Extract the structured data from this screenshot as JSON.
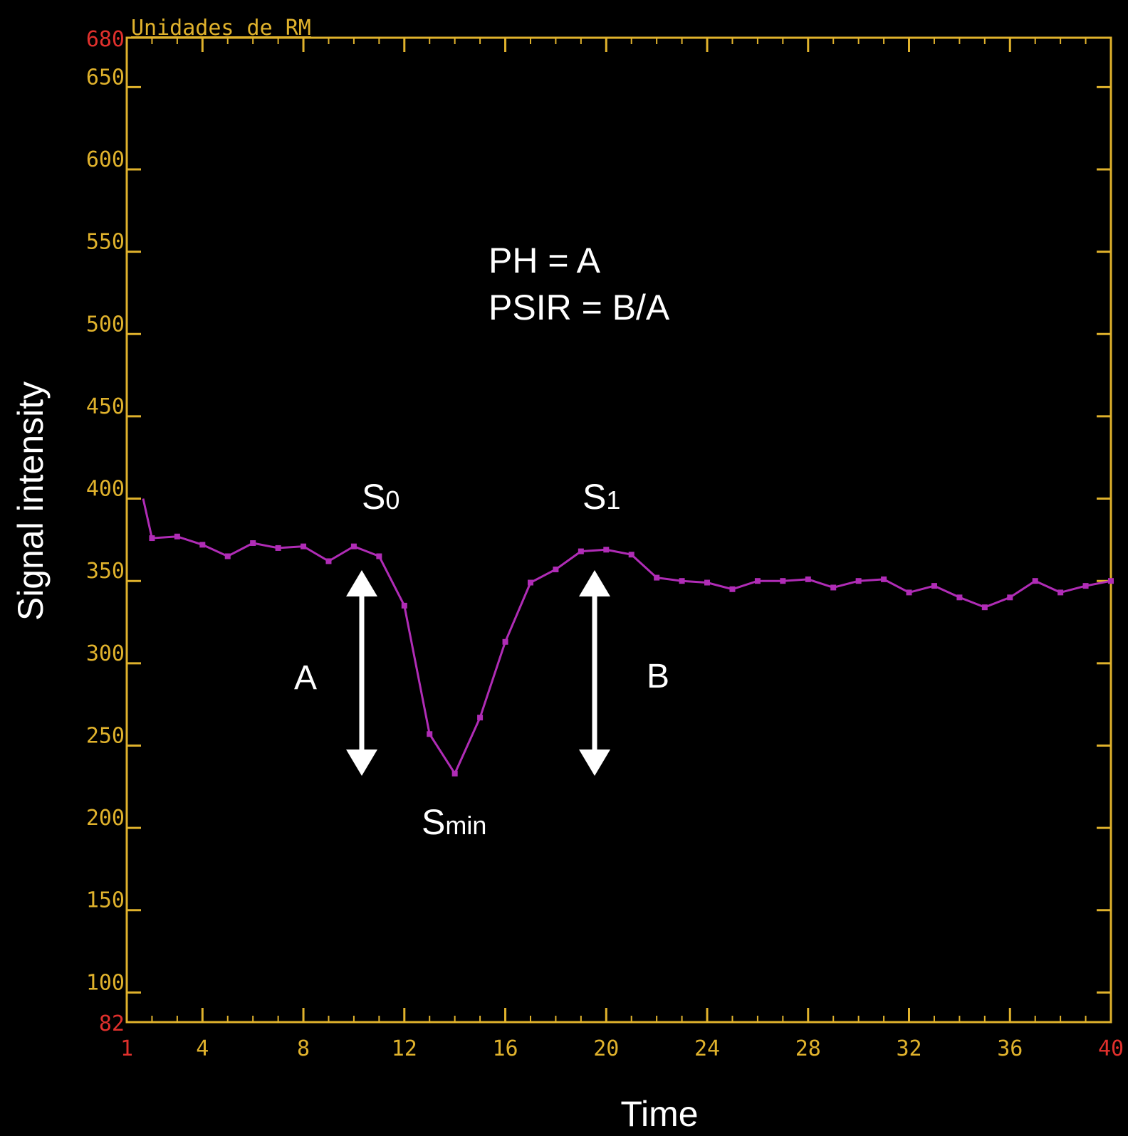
{
  "colors": {
    "background": "#000000",
    "axis": "#e0b22c",
    "limit_tick": "#e0302c",
    "series": "#b02cb6",
    "annotation": "#ffffff"
  },
  "chart_data": {
    "type": "line",
    "units_label": "Unidades de RM",
    "xlabel": "Time",
    "ylabel": "Signal intensity",
    "xlim": [
      1,
      40
    ],
    "ylim": [
      82,
      680
    ],
    "x_ticks": [
      4,
      8,
      12,
      16,
      20,
      24,
      28,
      32,
      36
    ],
    "x_limit_ticks": [
      1,
      40
    ],
    "y_ticks": [
      100,
      150,
      200,
      250,
      300,
      350,
      400,
      450,
      500,
      550,
      600,
      650
    ],
    "y_limit_ticks": [
      82,
      680
    ],
    "grid": false,
    "series": [
      {
        "x": [
          1.65,
          2,
          3,
          4,
          5,
          6,
          7,
          8,
          9,
          10,
          11,
          12,
          13,
          14,
          15,
          16,
          17,
          18,
          19,
          20,
          21,
          22,
          23,
          24,
          25,
          26,
          27,
          28,
          29,
          30,
          31,
          32,
          33,
          34,
          35,
          36,
          37,
          38,
          39,
          40
        ],
        "y": [
          400,
          376,
          377,
          372,
          365,
          373,
          370,
          371,
          362,
          371,
          365,
          335,
          257,
          233,
          267,
          313,
          349,
          357,
          368,
          369,
          366,
          352,
          350,
          349,
          345,
          350,
          350,
          351,
          346,
          350,
          351,
          343,
          347,
          340,
          334,
          340,
          350,
          343,
          347,
          350
        ]
      }
    ],
    "annotations": {
      "formula_ph": "PH = A",
      "formula_psir": "PSIR = B/A",
      "s0_main": "S",
      "s0_sub": "0",
      "s1_main": "S",
      "s1_sub": "1",
      "smin_main": "S",
      "smin_sub": "min",
      "arrow_a_label": "A",
      "arrow_b_label": "B"
    }
  }
}
